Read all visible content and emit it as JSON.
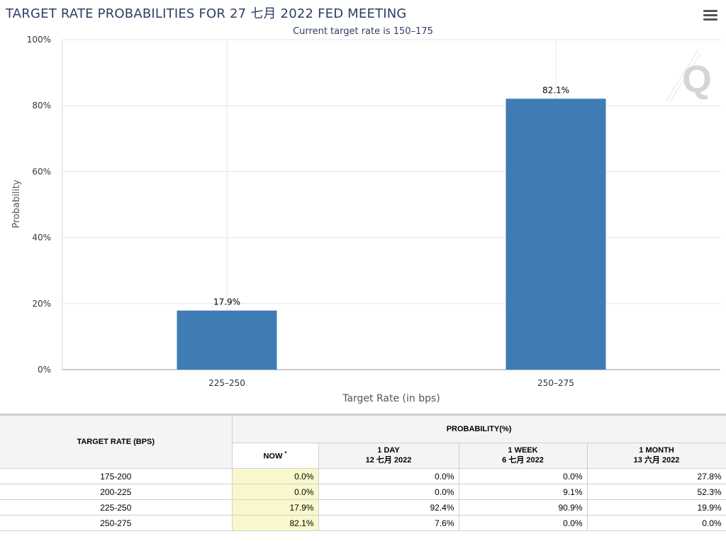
{
  "chart_data": {
    "type": "bar",
    "title": "TARGET RATE PROBABILITIES FOR 27 七月 2022 FED MEETING",
    "subtitle": "Current target rate is 150–175",
    "xlabel": "Target Rate (in bps)",
    "ylabel": "Probability",
    "categories": [
      "225–250",
      "250–275"
    ],
    "values": [
      17.9,
      82.1
    ],
    "data_labels": [
      "17.9%",
      "82.1%"
    ],
    "ylim": [
      0,
      100
    ],
    "yticks": [
      "0%",
      "20%",
      "40%",
      "60%",
      "80%",
      "100%"
    ],
    "bar_color": "#3f7cb5",
    "grid": true,
    "legend": "none"
  },
  "table": {
    "col_rate": "TARGET RATE (BPS)",
    "col_prob": "PROBABILITY(%)",
    "sub_headers": [
      {
        "line1": "NOW",
        "line2": ""
      },
      {
        "line1": "1 DAY",
        "line2": "12 七月 2022"
      },
      {
        "line1": "1 WEEK",
        "line2": "6 七月 2022"
      },
      {
        "line1": "1 MONTH",
        "line2": "13 六月 2022"
      }
    ],
    "now_mark": "*",
    "rows": [
      {
        "rate": "175-200",
        "values": [
          "0.0%",
          "0.0%",
          "0.0%",
          "27.8%"
        ]
      },
      {
        "rate": "200-225",
        "values": [
          "0.0%",
          "0.0%",
          "9.1%",
          "52.3%"
        ]
      },
      {
        "rate": "225-250",
        "values": [
          "17.9%",
          "92.4%",
          "90.9%",
          "19.9%"
        ]
      },
      {
        "rate": "250-275",
        "values": [
          "82.1%",
          "7.6%",
          "0.0%",
          "0.0%"
        ]
      }
    ]
  },
  "colors": {
    "title": "#2f3e63",
    "now_highlight": "#f8f8cc",
    "header_bg": "#f4f4f4"
  },
  "icons": {
    "menu": "hamburger-menu-icon",
    "watermark": "Q"
  }
}
